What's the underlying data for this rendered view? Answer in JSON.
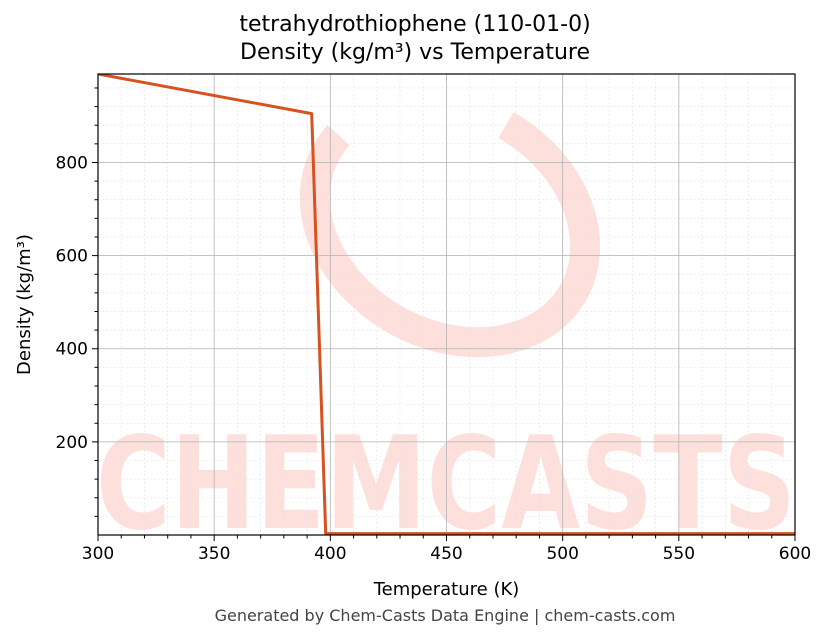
{
  "chart_data": {
    "type": "line",
    "title": "tetrahydrothiophene (110-01-0)",
    "subtitle": "Density (kg/m³) vs Temperature",
    "xlabel": "Temperature (K)",
    "ylabel": "Density (kg/m³)",
    "xlim": [
      300,
      600
    ],
    "ylim": [
      0,
      990
    ],
    "x_ticks": [
      300,
      350,
      400,
      450,
      500,
      550,
      600
    ],
    "y_ticks": [
      200,
      400,
      600,
      800
    ],
    "grid": true,
    "legend": "none",
    "series": [
      {
        "color": "#d6521f",
        "points": [
          {
            "x": 300,
            "y": 990
          },
          {
            "x": 392,
            "y": 905
          },
          {
            "x": 398,
            "y": 3
          },
          {
            "x": 600,
            "y": 3
          }
        ]
      }
    ]
  },
  "watermark": {
    "text": "CHEMCASTS",
    "color": "#fde0dc"
  },
  "footer": "Generated by Chem-Casts Data Engine | chem-casts.com"
}
